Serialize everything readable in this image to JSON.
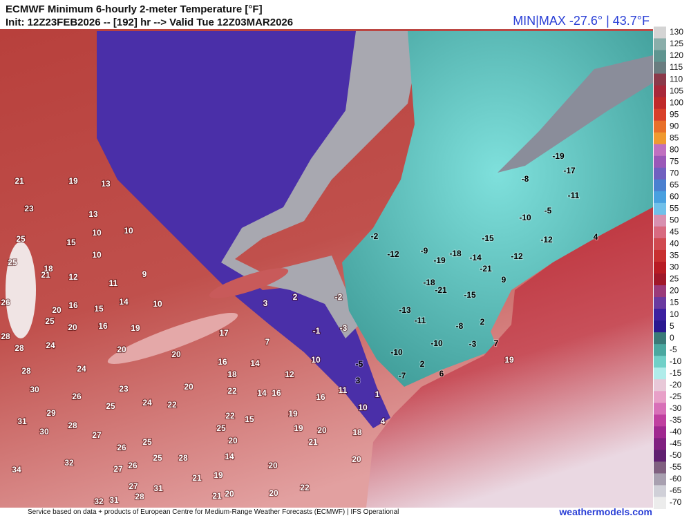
{
  "header": {
    "title": "ECMWF Minimum 6-hourly 2-meter Temperature [°F]",
    "init": "Init: 12Z23FEB2026 -- [192] hr --> Valid Tue 12Z03MAR2026",
    "minmax": "MIN|MAX -27.6° | 43.7°F"
  },
  "colorbar": {
    "ticks": [
      130,
      125,
      120,
      115,
      110,
      105,
      100,
      95,
      90,
      85,
      80,
      75,
      70,
      65,
      60,
      55,
      50,
      45,
      40,
      35,
      30,
      25,
      20,
      15,
      10,
      5,
      0,
      -5,
      -10,
      -15,
      -20,
      -25,
      -30,
      -35,
      -40,
      -45,
      -50,
      -55,
      -60,
      -65,
      -70
    ]
  },
  "stations": [
    21,
    19,
    13,
    23,
    13,
    10,
    25,
    15,
    10,
    10,
    25,
    18,
    21,
    12,
    11,
    9,
    26,
    20,
    16,
    15,
    14,
    10,
    25,
    20,
    16,
    19,
    28,
    24,
    20,
    17,
    20,
    28,
    16,
    14,
    7,
    3,
    2,
    -2,
    -1,
    -3,
    10,
    28,
    24,
    18,
    12,
    20,
    30,
    23,
    22,
    14,
    16,
    16,
    11,
    -5,
    3,
    1,
    26,
    24,
    22,
    25,
    29,
    22,
    15,
    19,
    10,
    4,
    31,
    28,
    30,
    27,
    25,
    19,
    20,
    18,
    20,
    21,
    26,
    25,
    25,
    28,
    14,
    20,
    32,
    27,
    26,
    20,
    34,
    21,
    19,
    27,
    28,
    31,
    20,
    21,
    20,
    22,
    32,
    31,
    -19,
    -17,
    -8,
    -11,
    -5,
    -10,
    -15,
    -12,
    4,
    -2,
    -12,
    -9,
    -19,
    -18,
    -14,
    -12,
    -21,
    9,
    -18,
    -21,
    -15,
    -13,
    -11,
    -8,
    2,
    -10,
    -10,
    -3,
    7,
    19,
    2,
    6,
    -7
  ],
  "footer": {
    "credit": "Service based on data + products of European Centre for Medium-Range Weather Forecasts (ECMWF) | IFS Operational",
    "brand": "weathermodels.com"
  }
}
